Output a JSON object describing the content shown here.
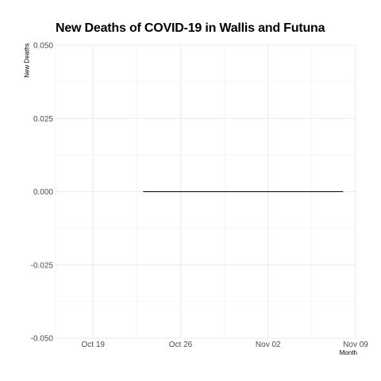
{
  "chart_data": {
    "type": "line",
    "title": "New Deaths of COVID-19 in Wallis and Futuna",
    "xlabel": "Month",
    "ylabel": "New Deaths",
    "x_ticks": [
      "Oct 19",
      "Oct 26",
      "Nov 02",
      "Nov 09"
    ],
    "y_ticks": [
      "-0.050",
      "-0.025",
      "0.000",
      "0.025",
      "0.050"
    ],
    "xlim": [
      "2020-10-16",
      "2020-11-09"
    ],
    "ylim": [
      -0.05,
      0.05
    ],
    "grid": true,
    "series": [
      {
        "x": [
          "2020-10-23",
          "2020-11-08"
        ],
        "y": [
          0,
          0
        ],
        "color": "#000000"
      }
    ]
  }
}
